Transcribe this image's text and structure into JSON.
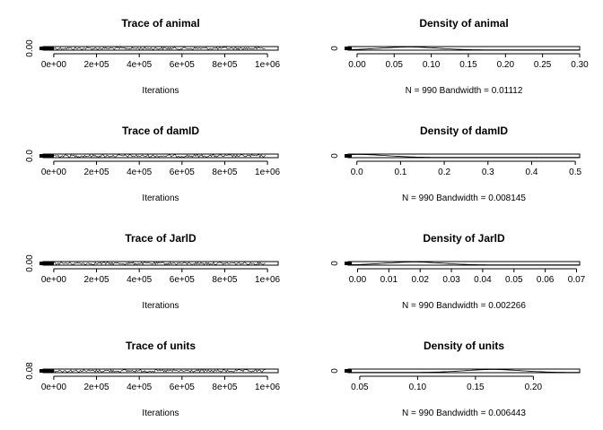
{
  "chart_data": [
    {
      "type": "line",
      "title": "Trace of animal",
      "xlabel": "Iterations",
      "ylabel": "",
      "x_tick_labels": [
        "0e+00",
        "2e+05",
        "4e+05",
        "6e+05",
        "8e+05",
        "1e+06"
      ],
      "x_tick_values": [
        0,
        200000,
        400000,
        600000,
        800000,
        1000000
      ],
      "y_tick_labels": [
        "0.00"
      ],
      "xlim": [
        -50000,
        1050000
      ],
      "ylim": [
        0,
        0.3
      ],
      "x_range_iterations": [
        1000,
        990000
      ],
      "n_samples": 990,
      "y_approx_range": [
        0,
        0.3
      ]
    },
    {
      "type": "line",
      "title": "Density of animal",
      "xlabel": "N = 990   Bandwidth = 0.01112",
      "ylabel": "",
      "x_tick_labels": [
        "0.00",
        "0.05",
        "0.10",
        "0.15",
        "0.20",
        "0.25",
        "0.30"
      ],
      "x_tick_values": [
        0,
        0.05,
        0.1,
        0.15,
        0.2,
        0.25,
        0.3
      ],
      "y_tick_labels": [
        "0"
      ],
      "xlim": [
        -0.012,
        0.3
      ],
      "density_peak_x": 0.07
    },
    {
      "type": "line",
      "title": "Trace of damID",
      "xlabel": "Iterations",
      "ylabel": "",
      "x_tick_labels": [
        "0e+00",
        "2e+05",
        "4e+05",
        "6e+05",
        "8e+05",
        "1e+06"
      ],
      "x_tick_values": [
        0,
        200000,
        400000,
        600000,
        800000,
        1000000
      ],
      "y_tick_labels": [
        "0.0"
      ],
      "xlim": [
        -50000,
        1050000
      ],
      "ylim": [
        0,
        0.5
      ]
    },
    {
      "type": "line",
      "title": "Density of damID",
      "xlabel": "N = 990   Bandwidth = 0.008145",
      "ylabel": "",
      "x_tick_labels": [
        "0.0",
        "0.1",
        "0.2",
        "0.3",
        "0.4",
        "0.5"
      ],
      "x_tick_values": [
        0,
        0.1,
        0.2,
        0.3,
        0.4,
        0.5
      ],
      "y_tick_labels": [
        "0"
      ],
      "xlim": [
        -0.02,
        0.51
      ],
      "density_peak_x": 0.005
    },
    {
      "type": "line",
      "title": "Trace of JarlD",
      "xlabel": "Iterations",
      "ylabel": "",
      "x_tick_labels": [
        "0e+00",
        "2e+05",
        "4e+05",
        "6e+05",
        "8e+05",
        "1e+06"
      ],
      "x_tick_values": [
        0,
        200000,
        400000,
        600000,
        800000,
        1000000
      ],
      "y_tick_labels": [
        "0.00"
      ],
      "xlim": [
        -50000,
        1050000
      ],
      "ylim": [
        0,
        0.07
      ]
    },
    {
      "type": "line",
      "title": "Density of JarlD",
      "xlabel": "N = 990   Bandwidth = 0.002266",
      "ylabel": "",
      "x_tick_labels": [
        "0.00",
        "0.01",
        "0.02",
        "0.03",
        "0.04",
        "0.05",
        "0.06",
        "0.07"
      ],
      "x_tick_values": [
        0,
        0.01,
        0.02,
        0.03,
        0.04,
        0.05,
        0.06,
        0.07
      ],
      "y_tick_labels": [
        "0"
      ],
      "xlim": [
        -0.003,
        0.071
      ],
      "density_peak_x": 0.018
    },
    {
      "type": "line",
      "title": "Trace of units",
      "xlabel": "Iterations",
      "ylabel": "",
      "x_tick_labels": [
        "0e+00",
        "2e+05",
        "4e+05",
        "6e+05",
        "8e+05",
        "1e+06"
      ],
      "x_tick_values": [
        0,
        200000,
        400000,
        600000,
        800000,
        1000000
      ],
      "y_tick_labels": [
        "0.08"
      ],
      "xlim": [
        -50000,
        1050000
      ],
      "ylim": [
        0.05,
        0.24
      ]
    },
    {
      "type": "line",
      "title": "Density of units",
      "xlabel": "N = 990   Bandwidth = 0.006443",
      "ylabel": "",
      "x_tick_labels": [
        "0.05",
        "0.10",
        "0.15",
        "0.20"
      ],
      "x_tick_values": [
        0.05,
        0.1,
        0.15,
        0.2
      ],
      "y_tick_labels": [
        "0"
      ],
      "xlim": [
        0.04,
        0.24
      ],
      "density_peak_x": 0.165
    }
  ]
}
